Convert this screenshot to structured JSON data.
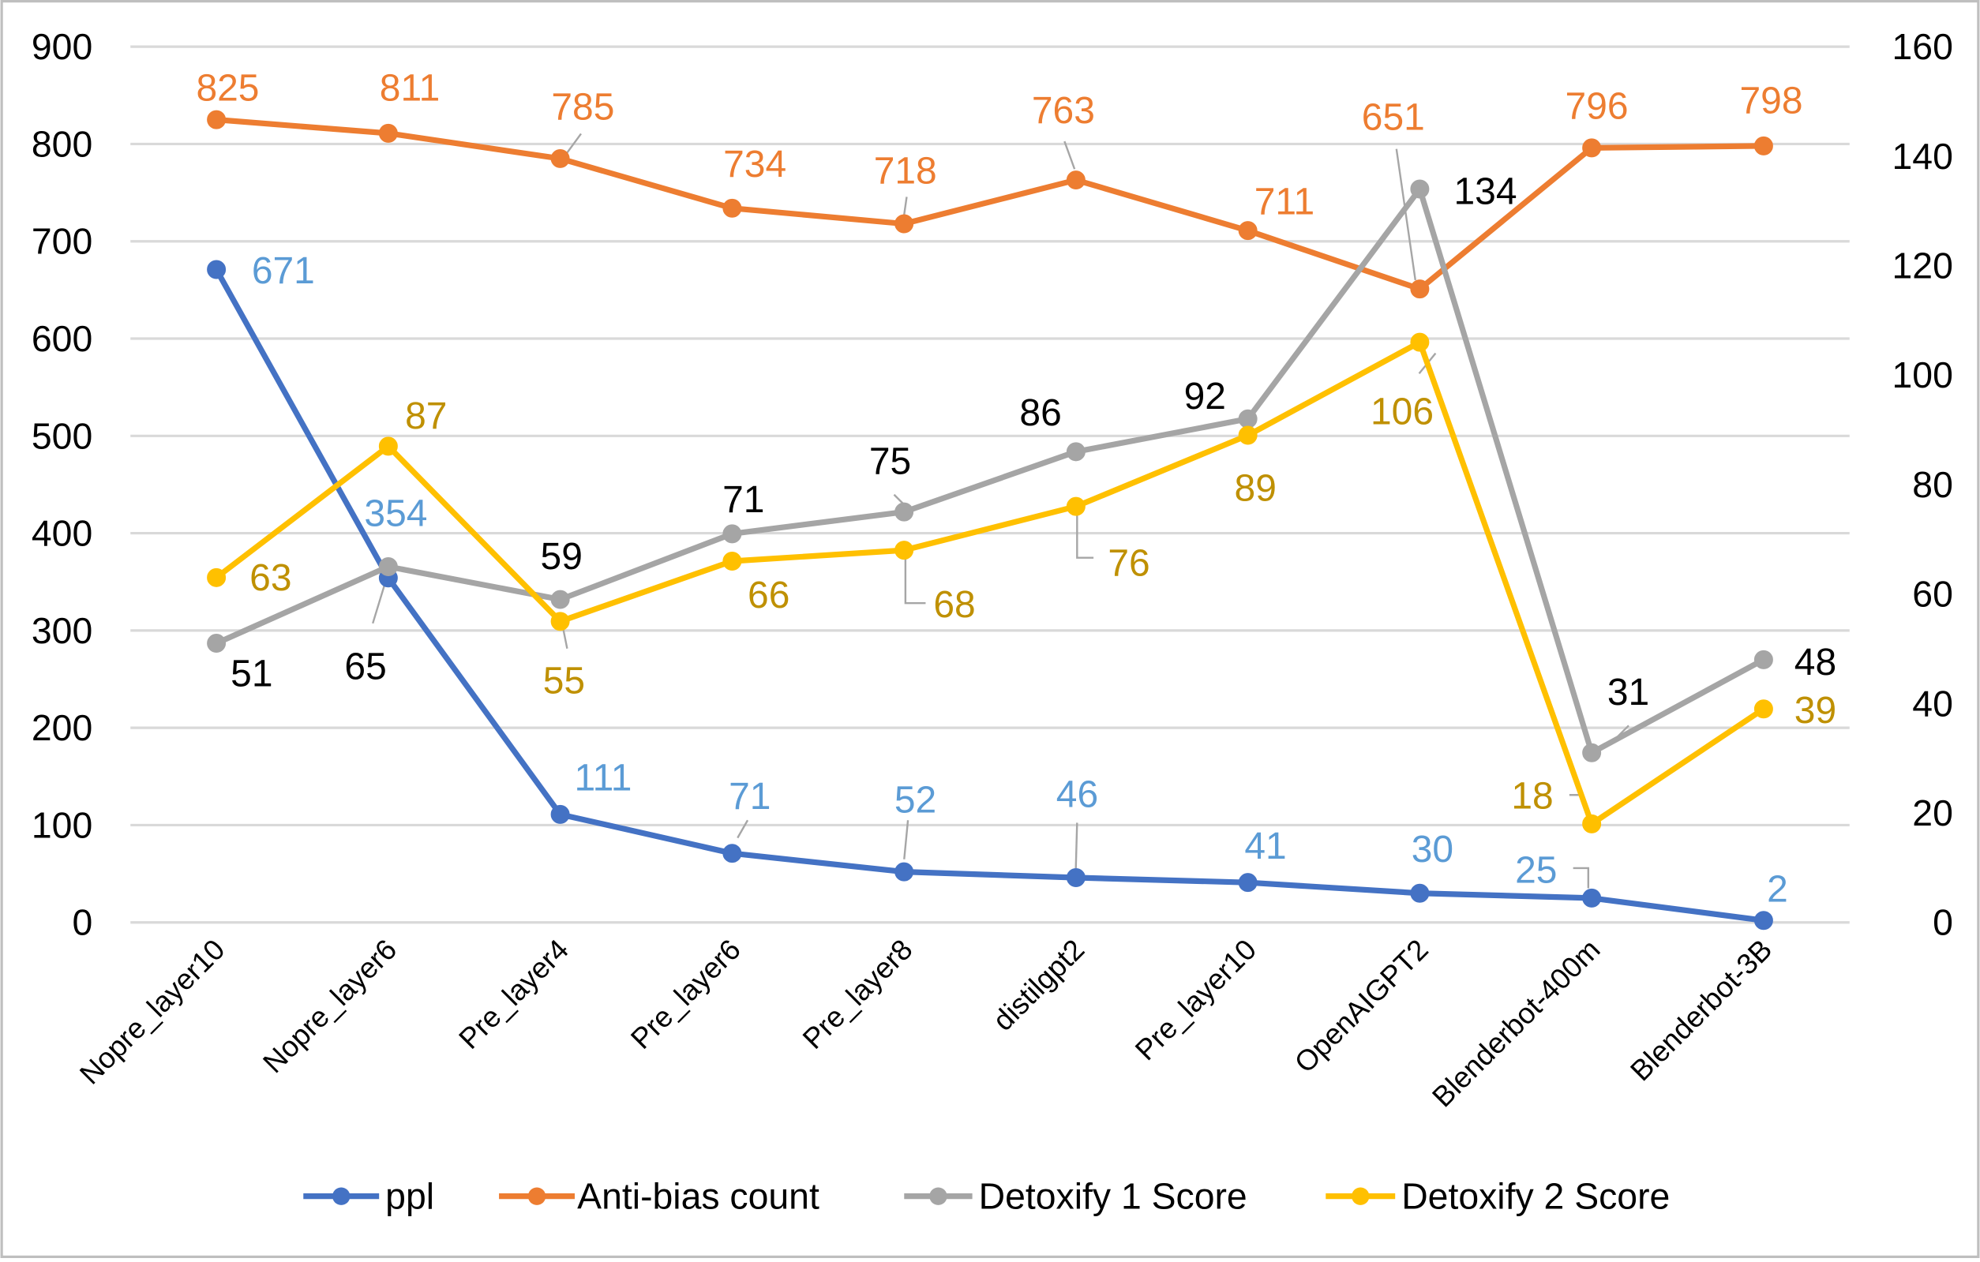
{
  "chart_data": {
    "type": "line",
    "categories": [
      "Nopre_layer10",
      "Nopre_layer6",
      "Pre_layer4",
      "Pre_layer6",
      "Pre_layer8",
      "distilgpt2",
      "Pre_layer10",
      "OpenAIGPT2",
      "Blenderbot-400m",
      "Blenderbot-3B"
    ],
    "series": [
      {
        "name": "ppl",
        "axis": "primary",
        "color": "#4472C4",
        "label_color": "#5B9BD5",
        "values": [
          671,
          354,
          111,
          71,
          52,
          46,
          41,
          30,
          25,
          2
        ]
      },
      {
        "name": "Anti-bias count",
        "axis": "primary",
        "color": "#ED7D31",
        "label_color": "#ED7D31",
        "values": [
          825,
          811,
          785,
          734,
          718,
          763,
          711,
          651,
          796,
          798
        ]
      },
      {
        "name": "Detoxify 1 Score",
        "axis": "secondary",
        "color": "#A5A5A5",
        "label_color": "#000000",
        "values": [
          51,
          65,
          59,
          71,
          75,
          86,
          92,
          134,
          31,
          48
        ]
      },
      {
        "name": "Detoxify 2 Score",
        "axis": "secondary",
        "color": "#FFC000",
        "label_color": "#BF9000",
        "values": [
          63,
          87,
          55,
          66,
          68,
          76,
          89,
          106,
          18,
          39
        ]
      }
    ],
    "ylim": [
      0,
      900
    ],
    "y_ticks": [
      0,
      100,
      200,
      300,
      400,
      500,
      600,
      700,
      800,
      900
    ],
    "y2lim": [
      0,
      160
    ],
    "y2_ticks": [
      0,
      20,
      40,
      60,
      80,
      100,
      120,
      140,
      160
    ],
    "grid": true,
    "legend": "bottom"
  }
}
